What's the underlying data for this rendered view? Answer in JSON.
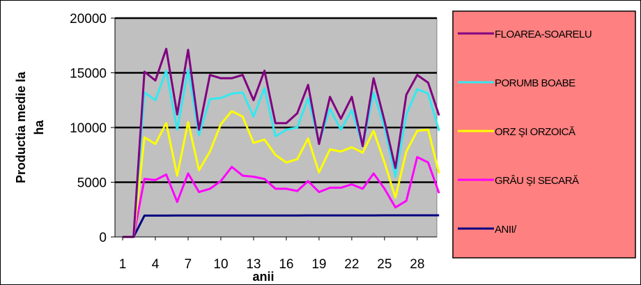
{
  "chart_data": {
    "type": "line",
    "title": "",
    "xlabel": "anii",
    "ylabel": "Productia medie la ha",
    "ylabel_lines": [
      "Productia medie la",
      "ha"
    ],
    "ylim": [
      0,
      20000
    ],
    "yticks": [
      0,
      5000,
      10000,
      15000,
      20000
    ],
    "xlim": [
      1,
      30
    ],
    "xtick_labels": [
      "1",
      "4",
      "7",
      "10",
      "13",
      "16",
      "19",
      "22",
      "25",
      "28"
    ],
    "xtick_values": [
      1,
      4,
      7,
      10,
      13,
      16,
      19,
      22,
      25,
      28
    ],
    "x": [
      1,
      2,
      3,
      4,
      5,
      6,
      7,
      8,
      9,
      10,
      11,
      12,
      13,
      14,
      15,
      16,
      17,
      18,
      19,
      20,
      21,
      22,
      23,
      24,
      25,
      26,
      27,
      28,
      29,
      30
    ],
    "grid": "horizontal",
    "legend_position": "right",
    "plot_background": "#c0c0c0",
    "legend_background": "#ff8080",
    "series": [
      {
        "name": "FLOAREA-SOARELUI",
        "legend_text": "FLOAREA-SOARELU",
        "color": "#800080",
        "values": [
          0,
          0,
          15100,
          14300,
          17200,
          11200,
          17100,
          9800,
          14800,
          14500,
          14500,
          14800,
          12500,
          15200,
          10400,
          10400,
          11300,
          13900,
          8500,
          12800,
          10800,
          12800,
          8300,
          14500,
          10600,
          6300,
          13000,
          14800,
          14100,
          11100
        ]
      },
      {
        "name": "PORUMB BOABE",
        "legend_text": "PORUMB BOABE",
        "color": "#33e8f0",
        "values": [
          0,
          0,
          13200,
          12500,
          15200,
          9800,
          15300,
          9300,
          12600,
          12700,
          13100,
          13200,
          11000,
          13600,
          9200,
          9800,
          10000,
          12700,
          8600,
          11700,
          9800,
          11600,
          8300,
          13200,
          10000,
          5500,
          11200,
          13500,
          13100,
          9700
        ]
      },
      {
        "name": "ORZ ŞI ORZOICĂ",
        "legend_text": "ORZ ŞI ORZOICĂ",
        "color": "#ffff00",
        "values": [
          0,
          0,
          9100,
          8500,
          10400,
          5600,
          10500,
          6100,
          7800,
          10300,
          11500,
          11000,
          8600,
          8900,
          7500,
          6800,
          7100,
          9000,
          5900,
          8000,
          7800,
          8200,
          7700,
          9700,
          6800,
          3600,
          7800,
          9700,
          9800,
          5800
        ]
      },
      {
        "name": "GRÂU ŞI SECARĂ",
        "legend_text": "GRÂU ŞI SECARĂ",
        "color": "#ff00ff",
        "values": [
          0,
          0,
          5300,
          5200,
          5700,
          3200,
          5800,
          4100,
          4400,
          5100,
          6400,
          5600,
          5500,
          5300,
          4400,
          4400,
          4200,
          5100,
          4100,
          4500,
          4500,
          4800,
          4400,
          5800,
          4400,
          2700,
          3300,
          7300,
          6800,
          4000
        ]
      },
      {
        "name": "ANII/",
        "legend_text": "ANII/",
        "color": "#000080",
        "values": [
          0,
          0,
          1950,
          1951,
          1952,
          1953,
          1954,
          1955,
          1956,
          1957,
          1958,
          1959,
          1960,
          1961,
          1962,
          1963,
          1964,
          1965,
          1966,
          1967,
          1968,
          1969,
          1970,
          1971,
          1972,
          1973,
          1974,
          1975,
          1976,
          1977
        ]
      }
    ]
  }
}
